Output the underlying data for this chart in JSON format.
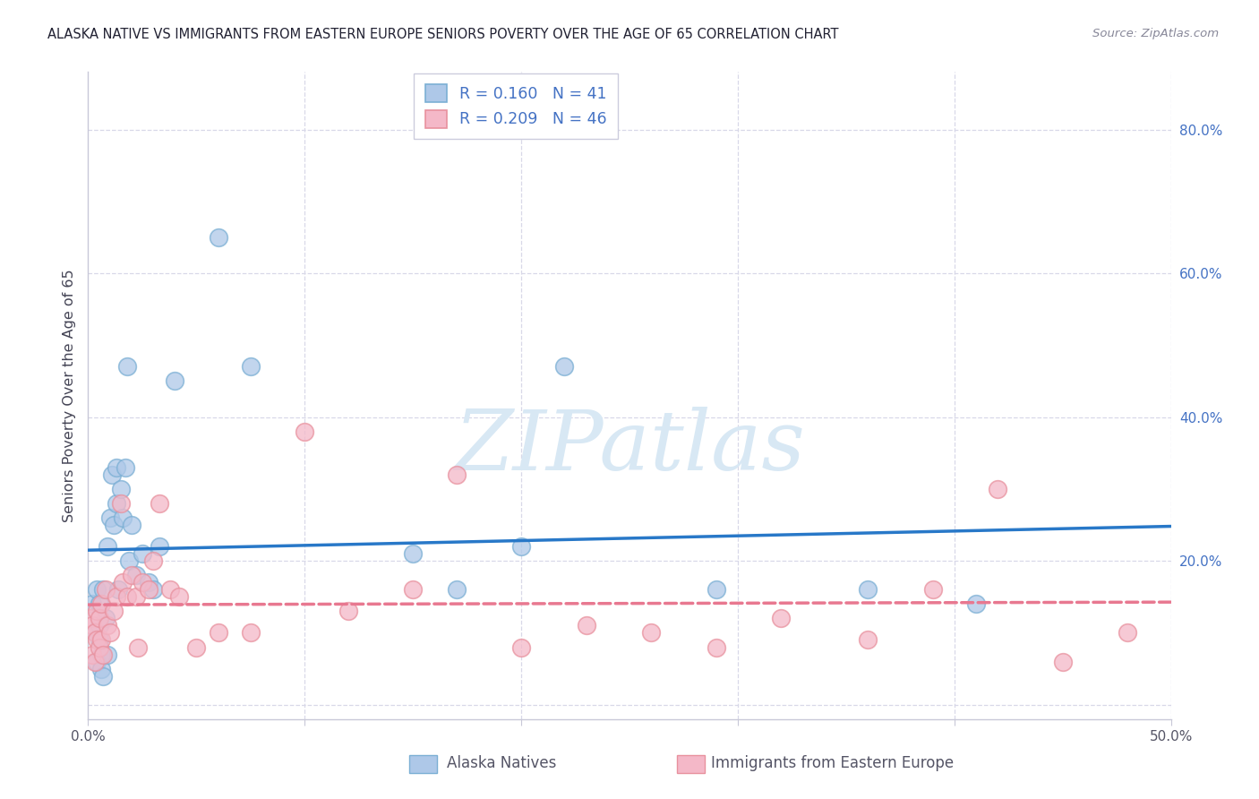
{
  "title": "ALASKA NATIVE VS IMMIGRANTS FROM EASTERN EUROPE SENIORS POVERTY OVER THE AGE OF 65 CORRELATION CHART",
  "source": "Source: ZipAtlas.com",
  "ylabel": "Seniors Poverty Over the Age of 65",
  "xlim": [
    0.0,
    0.5
  ],
  "ylim": [
    -0.02,
    0.88
  ],
  "xticks": [
    0.0,
    0.1,
    0.2,
    0.3,
    0.4,
    0.5
  ],
  "xtick_labels_bottom": [
    "0.0%",
    "",
    "",
    "",
    "",
    "50.0%"
  ],
  "yticks": [
    0.0,
    0.2,
    0.4,
    0.6,
    0.8
  ],
  "ytick_labels": [
    "",
    "20.0%",
    "40.0%",
    "60.0%",
    "80.0%"
  ],
  "legend1_label": "R = 0.160   N = 41",
  "legend2_label": "R = 0.209   N = 46",
  "xlabel_bottom1": "Alaska Natives",
  "xlabel_bottom2": "Immigrants from Eastern Europe",
  "blue_color": "#aec8e8",
  "pink_color": "#f4b8c8",
  "blue_edge_color": "#7bafd4",
  "pink_edge_color": "#e8919e",
  "trend_blue": "#2878c8",
  "trend_pink": "#e87890",
  "blue_scatter_x": [
    0.002,
    0.003,
    0.004,
    0.004,
    0.005,
    0.005,
    0.005,
    0.006,
    0.006,
    0.007,
    0.007,
    0.008,
    0.009,
    0.009,
    0.01,
    0.011,
    0.012,
    0.013,
    0.013,
    0.014,
    0.015,
    0.016,
    0.017,
    0.018,
    0.019,
    0.02,
    0.022,
    0.025,
    0.028,
    0.03,
    0.033,
    0.04,
    0.06,
    0.075,
    0.15,
    0.17,
    0.2,
    0.22,
    0.29,
    0.36,
    0.41
  ],
  "blue_scatter_y": [
    0.14,
    0.1,
    0.06,
    0.16,
    0.14,
    0.09,
    0.11,
    0.07,
    0.05,
    0.04,
    0.16,
    0.12,
    0.07,
    0.22,
    0.26,
    0.32,
    0.25,
    0.33,
    0.28,
    0.16,
    0.3,
    0.26,
    0.33,
    0.47,
    0.2,
    0.25,
    0.18,
    0.21,
    0.17,
    0.16,
    0.22,
    0.45,
    0.65,
    0.47,
    0.21,
    0.16,
    0.22,
    0.47,
    0.16,
    0.16,
    0.14
  ],
  "pink_scatter_x": [
    0.001,
    0.002,
    0.002,
    0.003,
    0.003,
    0.004,
    0.004,
    0.005,
    0.005,
    0.006,
    0.006,
    0.007,
    0.008,
    0.009,
    0.01,
    0.012,
    0.013,
    0.015,
    0.016,
    0.018,
    0.02,
    0.022,
    0.023,
    0.025,
    0.028,
    0.03,
    0.033,
    0.038,
    0.042,
    0.05,
    0.06,
    0.075,
    0.1,
    0.12,
    0.15,
    0.17,
    0.2,
    0.23,
    0.26,
    0.29,
    0.32,
    0.36,
    0.39,
    0.42,
    0.45,
    0.48
  ],
  "pink_scatter_y": [
    0.12,
    0.11,
    0.07,
    0.1,
    0.06,
    0.13,
    0.09,
    0.08,
    0.12,
    0.09,
    0.14,
    0.07,
    0.16,
    0.11,
    0.1,
    0.13,
    0.15,
    0.28,
    0.17,
    0.15,
    0.18,
    0.15,
    0.08,
    0.17,
    0.16,
    0.2,
    0.28,
    0.16,
    0.15,
    0.08,
    0.1,
    0.1,
    0.38,
    0.13,
    0.16,
    0.32,
    0.08,
    0.11,
    0.1,
    0.08,
    0.12,
    0.09,
    0.16,
    0.3,
    0.06,
    0.1
  ],
  "watermark_text": "ZIPatlas",
  "watermark_color": "#d8e8f4",
  "grid_color": "#d8d8e8",
  "spine_color": "#c8c8d8"
}
